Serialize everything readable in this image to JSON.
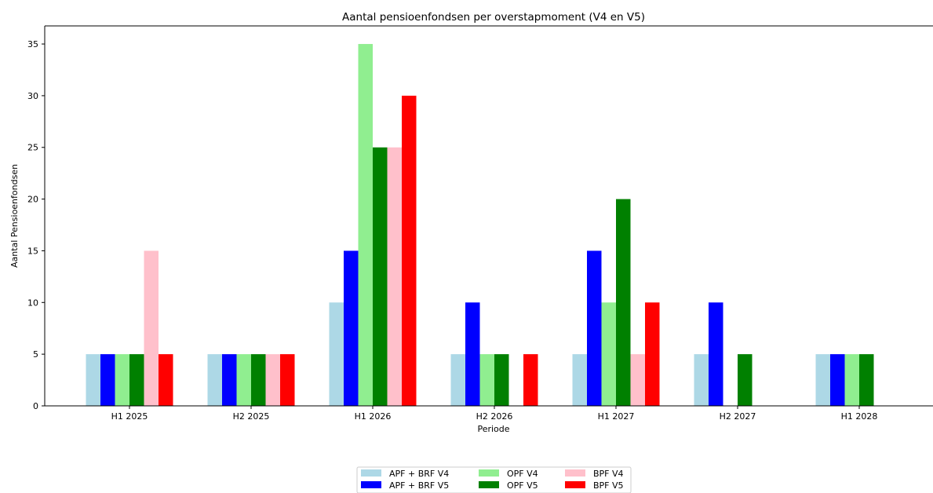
{
  "chart_data": {
    "type": "bar",
    "title": "Aantal pensioenfondsen per overstapmoment (V4 en V5)",
    "xlabel": "Periode",
    "ylabel": "Aantal Pensioenfondsen",
    "ylim": [
      0,
      36.75
    ],
    "yticks": [
      0,
      5,
      10,
      15,
      20,
      25,
      30,
      35
    ],
    "grid": false,
    "legend_position": "bottom-center",
    "categories": [
      "H1 2025",
      "H2 2025",
      "H1 2026",
      "H2 2026",
      "H1 2027",
      "H2 2027",
      "H1 2028"
    ],
    "series": [
      {
        "name": "APF + BRF V4",
        "color": "#add8e6",
        "values": [
          5,
          5,
          10,
          5,
          5,
          5,
          5
        ]
      },
      {
        "name": "APF + BRF V5",
        "color": "#0000ff",
        "values": [
          5,
          5,
          15,
          10,
          15,
          10,
          5
        ]
      },
      {
        "name": "OPF V4",
        "color": "#90ee90",
        "values": [
          5,
          5,
          35,
          5,
          10,
          0,
          5
        ]
      },
      {
        "name": "OPF V5",
        "color": "#008000",
        "values": [
          5,
          5,
          25,
          5,
          20,
          5,
          5
        ]
      },
      {
        "name": "BPF V4",
        "color": "#ffc0cb",
        "values": [
          15,
          5,
          25,
          0,
          5,
          0,
          0
        ]
      },
      {
        "name": "BPF V5",
        "color": "#ff0000",
        "values": [
          5,
          5,
          30,
          5,
          10,
          0,
          0
        ]
      }
    ]
  }
}
